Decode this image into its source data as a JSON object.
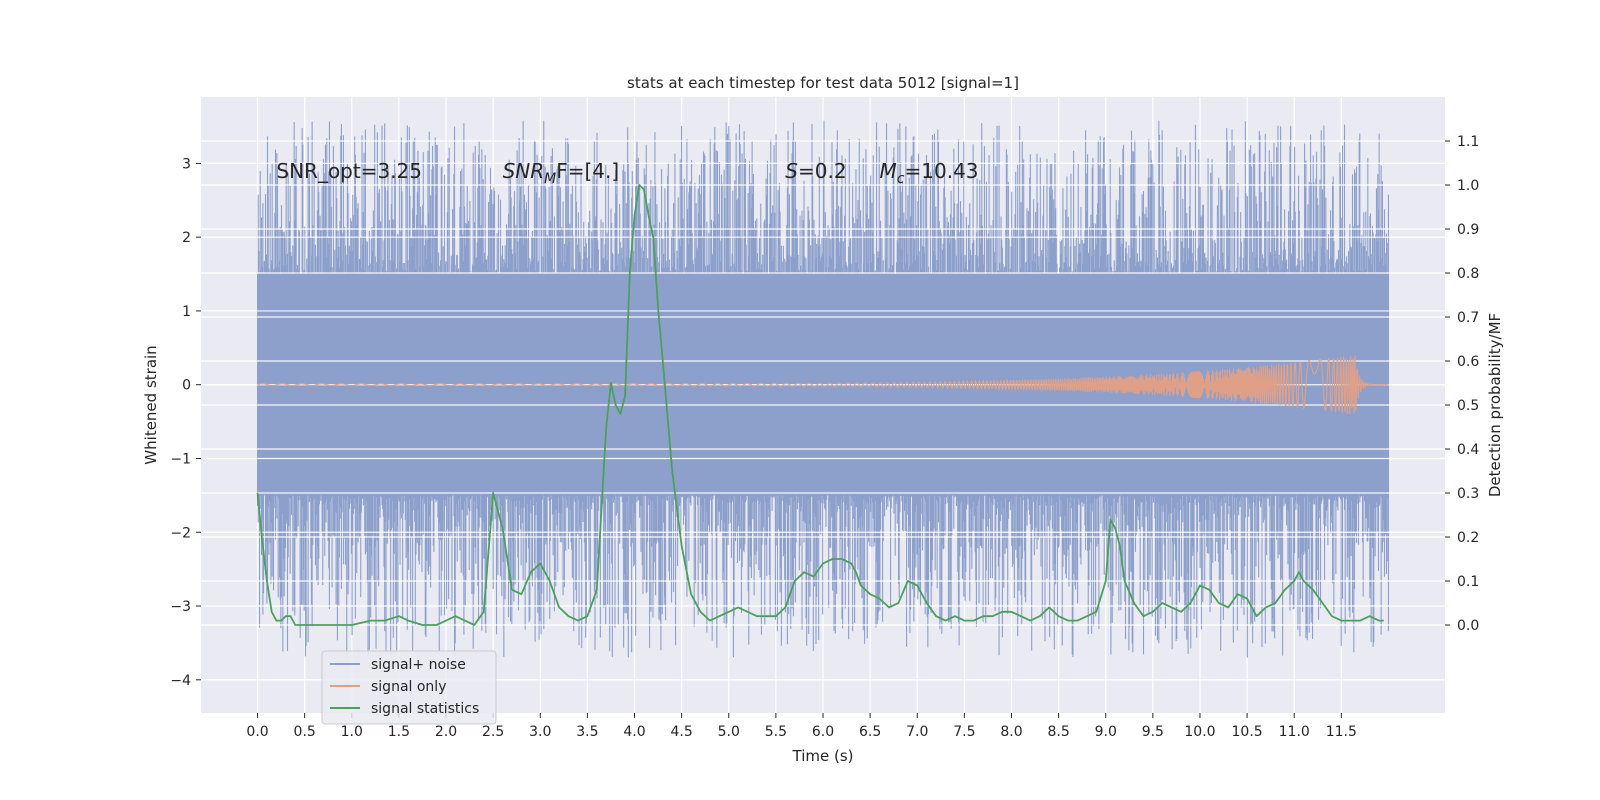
{
  "chart_data": {
    "type": "line",
    "title": "stats at each timestep for test data 5012 [signal=1]",
    "xlabel": "Time (s)",
    "ylabel": "Whitened strain",
    "ylabel_right": "Detection probability/MF",
    "xlim": [
      -0.6,
      12.6
    ],
    "ylim": [
      -4.45,
      3.9
    ],
    "ylim_right": [
      -0.2,
      1.2
    ],
    "x_ticks": [
      "0.0",
      "0.5",
      "1.0",
      "1.5",
      "2.0",
      "2.5",
      "3.0",
      "3.5",
      "4.0",
      "4.5",
      "5.0",
      "5.5",
      "6.0",
      "6.5",
      "7.0",
      "7.5",
      "8.0",
      "8.5",
      "9.0",
      "9.5",
      "10.0",
      "10.5",
      "11.0",
      "11.5"
    ],
    "y_ticks": [
      "−4",
      "−3",
      "−2",
      "−1",
      "0",
      "1",
      "2",
      "3"
    ],
    "y_right_ticks": [
      "0.0",
      "0.1",
      "0.2",
      "0.3",
      "0.4",
      "0.5",
      "0.6",
      "0.7",
      "0.8",
      "0.9",
      "1.0",
      "1.1"
    ],
    "grid": true,
    "legend_position": "bottom-left",
    "annotations": [
      {
        "text": "SNR_opt=3.25",
        "x": 0.2,
        "y": 2.8
      },
      {
        "text": "SNR",
        "sub": "M",
        "tail": "F=[4.]",
        "italic": true,
        "x": 2.6,
        "y": 2.8
      },
      {
        "text": "S",
        "tail": "=0.2",
        "italic": true,
        "x": 5.6,
        "y": 2.8
      },
      {
        "text": "M",
        "sub": "c",
        "tail": "=10.43",
        "italic": true,
        "x": 6.6,
        "y": 2.8
      }
    ],
    "series": [
      {
        "name": "signal+ noise",
        "color": "#8da0cb",
        "axis": "left",
        "t_range": [
          0.0,
          12.0
        ],
        "band": [
          -1.5,
          1.5
        ],
        "envelope_peak": [
          -3.7,
          3.6
        ]
      },
      {
        "name": "signal only",
        "color": "#e0a088",
        "axis": "left",
        "t_range": [
          0.0,
          12.0
        ],
        "chirp_peak_time": 11.65,
        "chirp_peak_amplitude": 0.4
      },
      {
        "name": "signal statistics",
        "color": "#4c9f5c",
        "axis": "right",
        "x": [
          0.0,
          0.05,
          0.1,
          0.15,
          0.2,
          0.25,
          0.3,
          0.35,
          0.4,
          0.5,
          0.6,
          0.8,
          1.0,
          1.2,
          1.35,
          1.5,
          1.6,
          1.75,
          1.9,
          2.0,
          2.1,
          2.2,
          2.3,
          2.4,
          2.5,
          2.55,
          2.6,
          2.7,
          2.8,
          2.9,
          3.0,
          3.1,
          3.2,
          3.3,
          3.4,
          3.5,
          3.6,
          3.7,
          3.75,
          3.8,
          3.85,
          3.9,
          3.95,
          4.0,
          4.05,
          4.1,
          4.15,
          4.2,
          4.25,
          4.3,
          4.4,
          4.5,
          4.6,
          4.7,
          4.8,
          4.9,
          5.0,
          5.1,
          5.2,
          5.3,
          5.4,
          5.5,
          5.6,
          5.7,
          5.8,
          5.9,
          6.0,
          6.1,
          6.2,
          6.3,
          6.35,
          6.4,
          6.5,
          6.6,
          6.7,
          6.8,
          6.9,
          7.0,
          7.1,
          7.2,
          7.3,
          7.4,
          7.5,
          7.6,
          7.7,
          7.8,
          7.9,
          8.0,
          8.1,
          8.2,
          8.3,
          8.4,
          8.5,
          8.6,
          8.7,
          8.8,
          8.9,
          9.0,
          9.05,
          9.1,
          9.15,
          9.2,
          9.3,
          9.4,
          9.5,
          9.6,
          9.7,
          9.8,
          9.9,
          10.0,
          10.1,
          10.2,
          10.3,
          10.4,
          10.5,
          10.6,
          10.7,
          10.8,
          10.9,
          11.0,
          11.05,
          11.1,
          11.2,
          11.3,
          11.4,
          11.5,
          11.6,
          11.7,
          11.8,
          11.9,
          11.95
        ],
        "y": [
          0.3,
          0.19,
          0.1,
          0.03,
          0.01,
          0.01,
          0.02,
          0.02,
          0.0,
          0.0,
          0.0,
          0.0,
          0.0,
          0.01,
          0.01,
          0.02,
          0.01,
          0.0,
          0.0,
          0.01,
          0.02,
          0.01,
          0.0,
          0.03,
          0.3,
          0.26,
          0.22,
          0.08,
          0.07,
          0.12,
          0.14,
          0.1,
          0.04,
          0.02,
          0.01,
          0.02,
          0.08,
          0.45,
          0.55,
          0.5,
          0.48,
          0.52,
          0.8,
          0.93,
          1.0,
          0.99,
          0.93,
          0.88,
          0.72,
          0.6,
          0.35,
          0.18,
          0.07,
          0.03,
          0.01,
          0.02,
          0.03,
          0.04,
          0.03,
          0.02,
          0.02,
          0.02,
          0.04,
          0.1,
          0.12,
          0.11,
          0.14,
          0.15,
          0.15,
          0.14,
          0.12,
          0.09,
          0.07,
          0.06,
          0.04,
          0.05,
          0.1,
          0.09,
          0.05,
          0.02,
          0.01,
          0.02,
          0.01,
          0.01,
          0.02,
          0.02,
          0.03,
          0.03,
          0.02,
          0.01,
          0.02,
          0.04,
          0.02,
          0.01,
          0.01,
          0.02,
          0.03,
          0.1,
          0.24,
          0.22,
          0.18,
          0.1,
          0.05,
          0.02,
          0.03,
          0.05,
          0.04,
          0.03,
          0.05,
          0.09,
          0.08,
          0.05,
          0.04,
          0.07,
          0.06,
          0.02,
          0.04,
          0.05,
          0.08,
          0.1,
          0.12,
          0.1,
          0.08,
          0.05,
          0.02,
          0.01,
          0.01,
          0.01,
          0.02,
          0.01,
          0.01
        ]
      }
    ]
  }
}
